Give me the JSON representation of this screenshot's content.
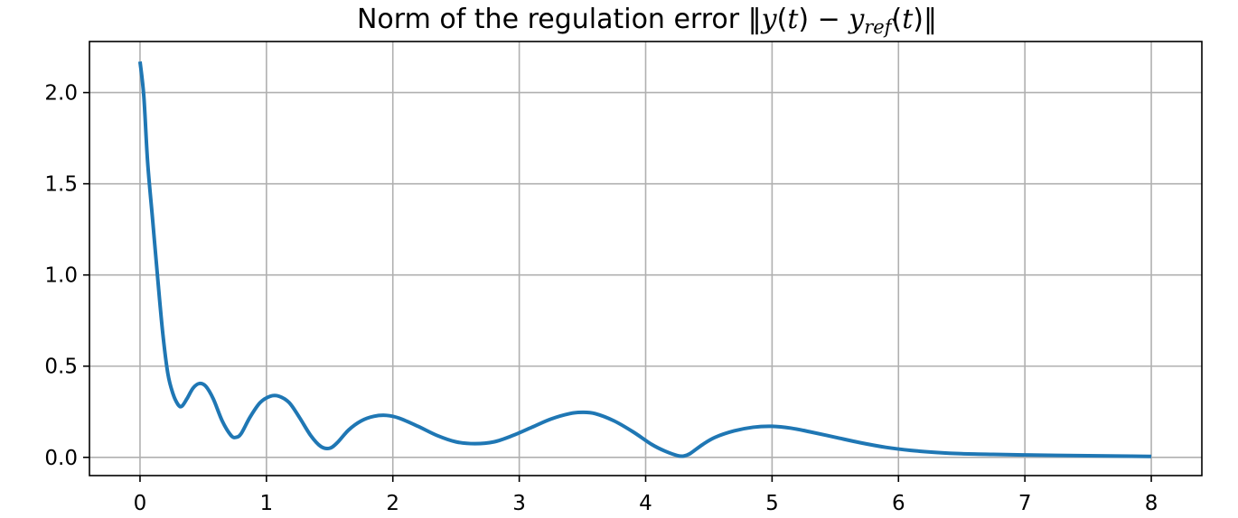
{
  "chart_data": {
    "type": "line",
    "title_parts": {
      "prefix": "Norm of the regulation error ",
      "bar_open": "‖",
      "y": "y",
      "paren_t_1": "(",
      "t_1": "t",
      "close_1": ")",
      "minus": " − ",
      "y2": "y",
      "sub": "ref",
      "paren_t_2": "(",
      "t_2": "t",
      "close_2": ")",
      "bar_close": "‖"
    },
    "xlabel": "",
    "ylabel": "",
    "xlim": [
      -0.4,
      8.4
    ],
    "ylim": [
      -0.1,
      2.28
    ],
    "xticks": [
      0,
      1,
      2,
      3,
      4,
      5,
      6,
      7,
      8
    ],
    "xtick_labels": [
      "0",
      "1",
      "2",
      "3",
      "4",
      "5",
      "6",
      "7",
      "8"
    ],
    "yticks": [
      0.0,
      0.5,
      1.0,
      1.5,
      2.0
    ],
    "ytick_labels": [
      "0.0",
      "0.5",
      "1.0",
      "1.5",
      "2.0"
    ],
    "grid": true,
    "color": "#1f77b4",
    "series": [
      {
        "x": [
          0.0,
          0.03,
          0.06,
          0.1,
          0.14,
          0.18,
          0.22,
          0.26,
          0.3,
          0.33,
          0.37,
          0.42,
          0.47,
          0.52,
          0.58,
          0.65,
          0.72,
          0.76,
          0.8,
          0.87,
          0.95,
          1.03,
          1.1,
          1.18,
          1.26,
          1.35,
          1.43,
          1.5,
          1.56,
          1.65,
          1.75,
          1.85,
          1.95,
          2.05,
          2.2,
          2.35,
          2.5,
          2.65,
          2.8,
          2.95,
          3.1,
          3.25,
          3.4,
          3.5,
          3.6,
          3.75,
          3.9,
          4.05,
          4.15,
          4.25,
          4.3,
          4.35,
          4.45,
          4.55,
          4.7,
          4.85,
          5.0,
          5.15,
          5.3,
          5.5,
          5.7,
          5.9,
          6.1,
          6.3,
          6.5,
          6.75,
          7.0,
          7.25,
          7.5,
          7.75,
          8.0
        ],
        "y": [
          2.17,
          1.98,
          1.62,
          1.3,
          0.98,
          0.68,
          0.46,
          0.35,
          0.29,
          0.28,
          0.32,
          0.38,
          0.405,
          0.39,
          0.32,
          0.2,
          0.12,
          0.11,
          0.13,
          0.22,
          0.3,
          0.335,
          0.335,
          0.3,
          0.22,
          0.12,
          0.06,
          0.05,
          0.08,
          0.15,
          0.2,
          0.225,
          0.23,
          0.215,
          0.17,
          0.12,
          0.085,
          0.075,
          0.085,
          0.12,
          0.165,
          0.21,
          0.24,
          0.247,
          0.24,
          0.2,
          0.14,
          0.07,
          0.035,
          0.01,
          0.007,
          0.02,
          0.07,
          0.11,
          0.145,
          0.165,
          0.17,
          0.16,
          0.14,
          0.11,
          0.08,
          0.055,
          0.038,
          0.027,
          0.02,
          0.016,
          0.013,
          0.011,
          0.009,
          0.007,
          0.005
        ]
      }
    ]
  }
}
